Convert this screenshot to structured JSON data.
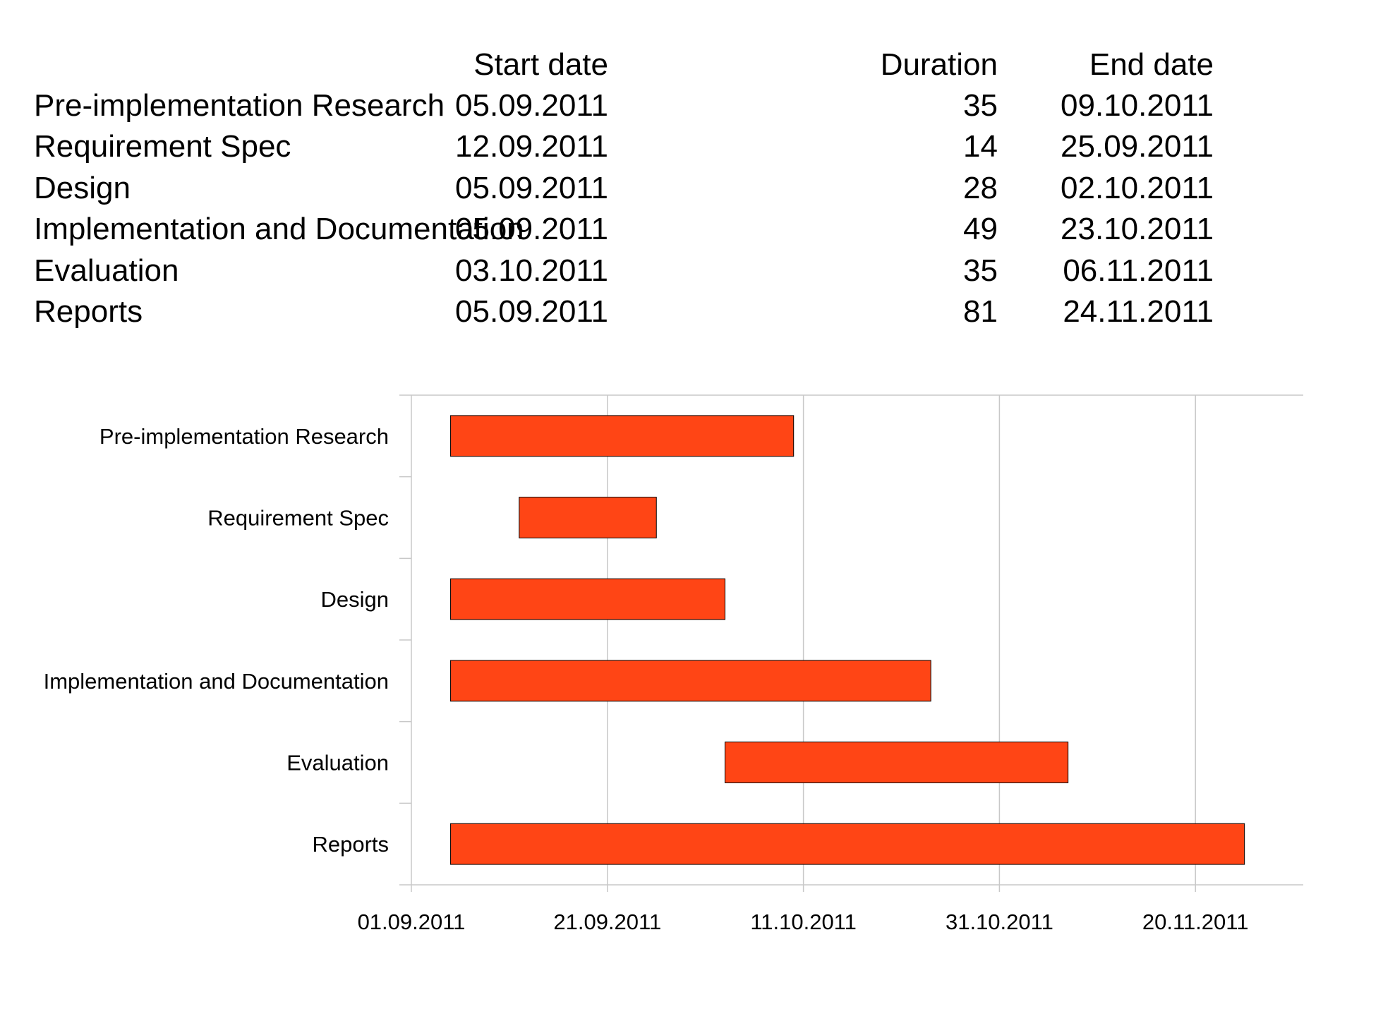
{
  "table": {
    "headers": {
      "start": "Start date",
      "duration": "Duration",
      "end": "End date"
    },
    "rows": [
      {
        "task": "Pre-implementation Research",
        "start": "05.09.2011",
        "duration": "35",
        "end": "09.10.2011"
      },
      {
        "task": "Requirement Spec",
        "start": "12.09.2011",
        "duration": "14",
        "end": "25.09.2011"
      },
      {
        "task": "Design",
        "start": "05.09.2011",
        "duration": "28",
        "end": "02.10.2011"
      },
      {
        "task": "Implementation and Documentation",
        "start": "05.09.2011",
        "duration": "49",
        "end": "23.10.2011"
      },
      {
        "task": "Evaluation",
        "start": "03.10.2011",
        "duration": "35",
        "end": "06.11.2011"
      },
      {
        "task": "Reports",
        "start": "05.09.2011",
        "duration": "81",
        "end": "24.11.2011"
      }
    ]
  },
  "chart_data": {
    "type": "bar",
    "orientation": "horizontal",
    "stacked": "gantt",
    "categories": [
      "Pre-implementation Research",
      "Requirement Spec",
      "Design",
      "Implementation and Documentation",
      "Evaluation",
      "Reports"
    ],
    "series": [
      {
        "start": [
          "2011-09-05",
          "2011-09-12",
          "2011-09-05",
          "2011-09-05",
          "2011-10-03",
          "2011-09-05"
        ],
        "duration_days": [
          35,
          14,
          28,
          49,
          35,
          81
        ],
        "color": "#ff4515"
      }
    ],
    "xlim": [
      "2011-09-01",
      "2011-12-01"
    ],
    "x_ticks": [
      "2011-09-01",
      "2011-09-21",
      "2011-10-11",
      "2011-10-31",
      "2011-11-20"
    ],
    "x_tick_labels": [
      "01.09.2011",
      "21.09.2011",
      "11.10.2011",
      "31.10.2011",
      "20.11.2011"
    ],
    "grid": "vertical",
    "legend": "none",
    "bar_border_color": "#000000",
    "grid_color": "#c8c8c8"
  }
}
